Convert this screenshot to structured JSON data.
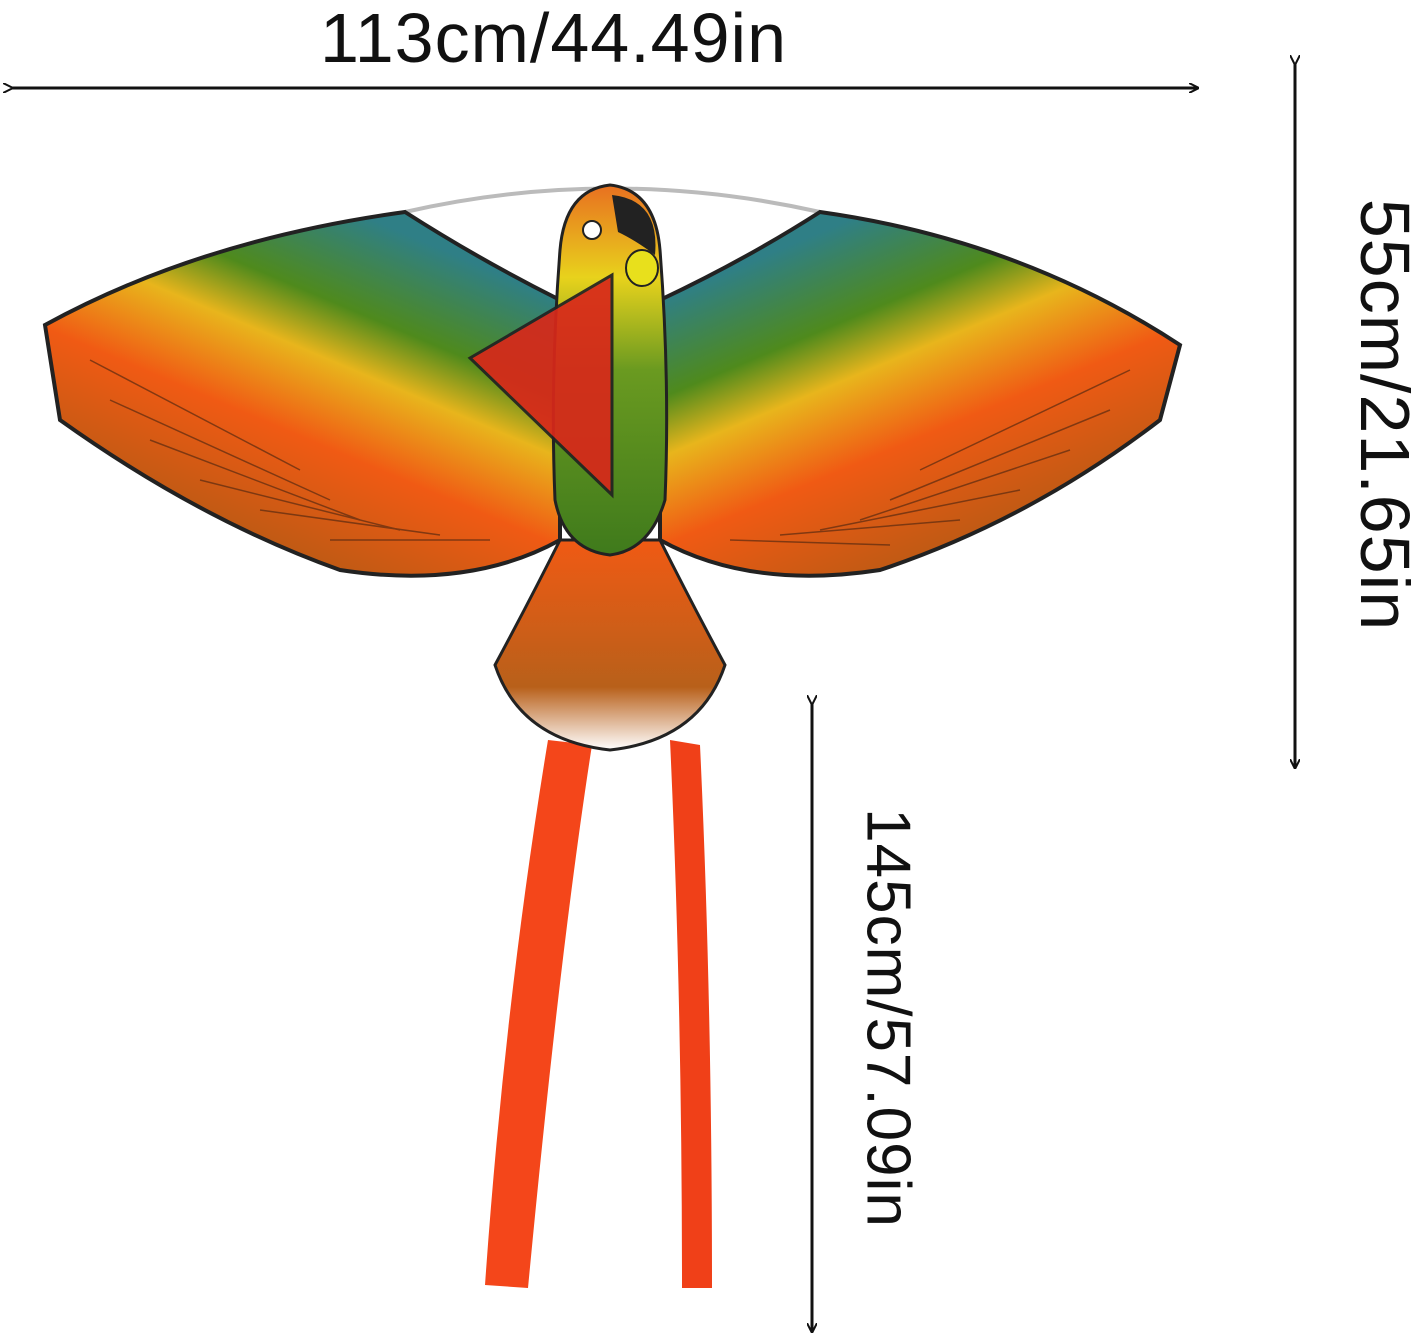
{
  "dimensions": {
    "width_label": "113cm/44.49in",
    "height_label": "55cm/21.65in",
    "tail_label": "145cm/57.09in"
  },
  "product": {
    "icon": "parrot-kite",
    "colors": {
      "orange": "#f05a14",
      "green": "#4f8a1c",
      "teal": "#2f7f86",
      "yellow": "#e8d21c",
      "ribbon": "#f4461a",
      "outline": "#222222"
    }
  }
}
